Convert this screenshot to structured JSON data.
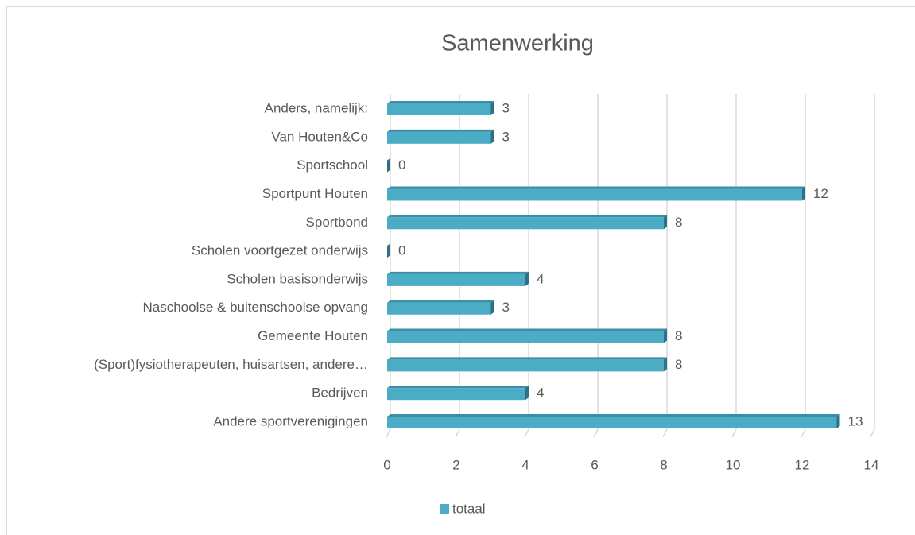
{
  "chart_data": {
    "type": "bar",
    "orientation": "horizontal",
    "title": "Samenwerking",
    "categories": [
      "Anders, namelijk:",
      "Van Houten&Co",
      "Sportschool",
      "Sportpunt Houten",
      "Sportbond",
      "Scholen voortgezet onderwijs",
      "Scholen basisonderwijs",
      "Naschoolse & buitenschoolse opvang",
      "Gemeente Houten",
      "(Sport)fysiotherapeuten, huisartsen, andere…",
      "Bedrijven",
      "Andere sportverenigingen"
    ],
    "series": [
      {
        "name": "totaal",
        "color": "#4bacc6",
        "values": [
          3,
          3,
          0,
          12,
          8,
          0,
          4,
          3,
          8,
          8,
          4,
          13
        ]
      }
    ],
    "xlim": [
      0,
      14
    ],
    "xticks": [
      0,
      2,
      4,
      6,
      8,
      10,
      12,
      14
    ],
    "grid": true,
    "legend": "bottom"
  }
}
